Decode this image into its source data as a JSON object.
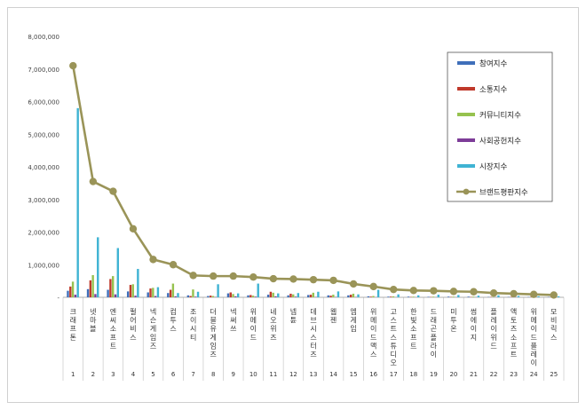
{
  "chart_data": {
    "type": "bar",
    "title": "",
    "xlabel": "",
    "ylabel": "",
    "ylim": [
      0,
      8000000
    ],
    "yticks": [
      0,
      1000000,
      2000000,
      3000000,
      4000000,
      5000000,
      6000000,
      7000000,
      8000000
    ],
    "ytick_labels": [
      "-",
      "1,000,000",
      "2,000,000",
      "3,000,000",
      "4,000,000",
      "5,000,000",
      "6,000,000",
      "7,000,000",
      "8,000,000"
    ],
    "grid": false,
    "legend_position": "top-right",
    "categories": [
      "크래프톤",
      "넷마블",
      "엔씨소프트",
      "펄어비스",
      "넥슨게임즈",
      "컴투스",
      "조이시티",
      "더블유게임즈",
      "넥써쓰",
      "위메이드",
      "네오위즈",
      "넵튠",
      "데브시스터즈",
      "웹젠",
      "엠게임",
      "위메이드맥스",
      "고스트스튜디오",
      "한빛소프트",
      "드래곤플라이",
      "미투온",
      "썸에이지",
      "플레이위드",
      "액토즈소프트",
      "위메이드플레이",
      "모비릭스"
    ],
    "ranks": [
      "1",
      "2",
      "3",
      "4",
      "5",
      "6",
      "7",
      "8",
      "9",
      "10",
      "11",
      "12",
      "13",
      "14",
      "15",
      "16",
      "17",
      "18",
      "19",
      "20",
      "21",
      "22",
      "23",
      "24",
      "25"
    ],
    "series": [
      {
        "name": "참여지수",
        "kind": "bar",
        "color": "#3f6fba",
        "values": [
          200000,
          250000,
          230000,
          180000,
          150000,
          130000,
          60000,
          40000,
          120000,
          60000,
          80000,
          60000,
          70000,
          60000,
          60000,
          30000,
          20000,
          20000,
          15000,
          20000,
          20000,
          10000,
          10000,
          10000,
          10000
        ]
      },
      {
        "name": "소통지수",
        "kind": "bar",
        "color": "#c0392b",
        "values": [
          330000,
          520000,
          560000,
          380000,
          270000,
          230000,
          40000,
          50000,
          150000,
          70000,
          170000,
          110000,
          80000,
          50000,
          80000,
          20000,
          20000,
          10000,
          10000,
          10000,
          10000,
          10000,
          10000,
          10000,
          10000
        ]
      },
      {
        "name": "커뮤니티지수",
        "kind": "bar",
        "color": "#96c24f",
        "values": [
          480000,
          680000,
          650000,
          400000,
          290000,
          420000,
          240000,
          40000,
          100000,
          50000,
          140000,
          90000,
          140000,
          80000,
          110000,
          40000,
          30000,
          20000,
          20000,
          20000,
          20000,
          10000,
          10000,
          10000,
          10000
        ]
      },
      {
        "name": "사회공헌지수",
        "kind": "bar",
        "color": "#7d3c98",
        "values": [
          80000,
          100000,
          90000,
          50000,
          40000,
          30000,
          20000,
          10000,
          30000,
          20000,
          30000,
          20000,
          10000,
          10000,
          10000,
          5000,
          5000,
          5000,
          5000,
          5000,
          5000,
          5000,
          5000,
          5000,
          5000
        ]
      },
      {
        "name": "시장지수",
        "kind": "bar",
        "color": "#3fb3d3",
        "values": [
          5800000,
          1840000,
          1510000,
          870000,
          310000,
          130000,
          170000,
          400000,
          120000,
          420000,
          120000,
          130000,
          170000,
          180000,
          90000,
          230000,
          90000,
          60000,
          80000,
          70000,
          50000,
          60000,
          40000,
          30000,
          30000
        ]
      },
      {
        "name": "브랜드평판지수",
        "kind": "line",
        "color": "#9a9458",
        "values": [
          7100000,
          3550000,
          3250000,
          2100000,
          1160000,
          1000000,
          670000,
          650000,
          650000,
          620000,
          570000,
          560000,
          540000,
          520000,
          410000,
          330000,
          240000,
          210000,
          200000,
          180000,
          170000,
          130000,
          110000,
          90000,
          70000
        ]
      }
    ]
  }
}
